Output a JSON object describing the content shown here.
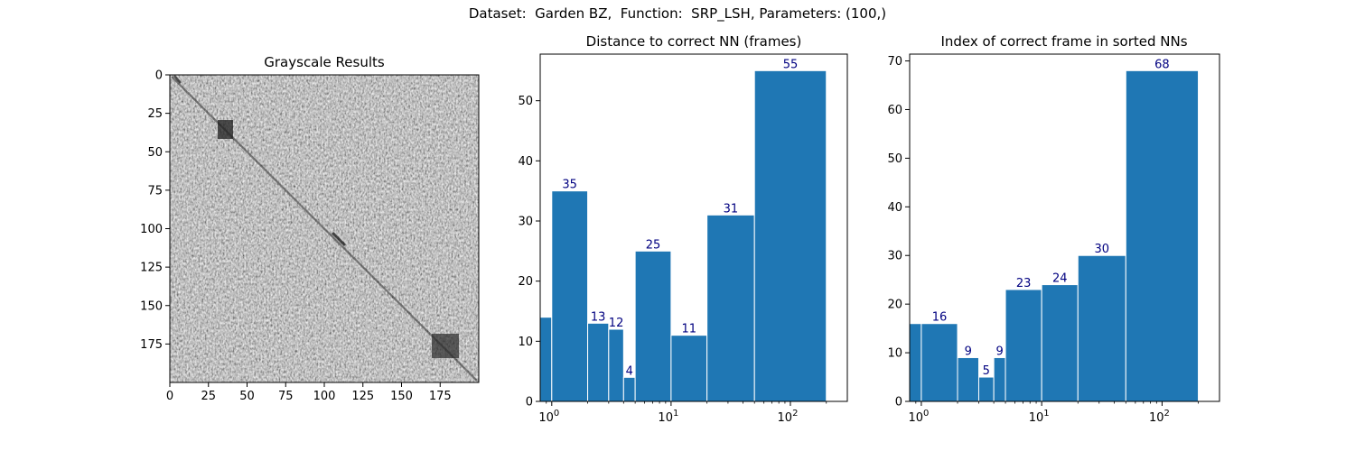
{
  "figure": {
    "suptitle": "Dataset:  Garden BZ,  Function:  SRP_LSH, Parameters: (100,)"
  },
  "colors": {
    "bar": "#1f77b4",
    "bar_edge": "#ffffff",
    "label": "#000080"
  },
  "chart_data": [
    {
      "type": "heatmap",
      "title": "Grayscale Results",
      "colormap": "gray",
      "rows": 200,
      "cols": 200,
      "x_ticks": [
        0,
        25,
        50,
        75,
        100,
        125,
        150,
        175
      ],
      "y_ticks": [
        0,
        25,
        50,
        75,
        100,
        125,
        150,
        175
      ],
      "xlim": [
        0,
        200
      ],
      "ylim": [
        200,
        0
      ]
    },
    {
      "type": "bar",
      "title": "Distance to correct NN (frames)",
      "x_scale": "log",
      "x_tick_labels": [
        "10^0",
        "10^1",
        "10^2"
      ],
      "bins": [
        [
          0.75,
          1
        ],
        [
          1,
          2
        ],
        [
          2,
          3
        ],
        [
          3,
          4
        ],
        [
          4,
          5
        ],
        [
          5,
          10
        ],
        [
          10,
          20
        ],
        [
          20,
          50
        ],
        [
          50,
          200
        ]
      ],
      "values": [
        14,
        35,
        13,
        12,
        4,
        25,
        11,
        31,
        55
      ],
      "labels": [
        "",
        "35",
        "13",
        "12",
        "4",
        "25",
        "11",
        "31",
        "55"
      ],
      "y_ticks": [
        0,
        10,
        20,
        30,
        40,
        50
      ],
      "ylim": [
        0,
        57.75
      ],
      "xlim": [
        0.8,
        300
      ]
    },
    {
      "type": "bar",
      "title": "Index of correct frame in sorted NNs",
      "x_scale": "log",
      "x_tick_labels": [
        "10^0",
        "10^1",
        "10^2"
      ],
      "bins": [
        [
          0.75,
          1
        ],
        [
          1,
          2
        ],
        [
          2,
          3
        ],
        [
          3,
          4
        ],
        [
          4,
          5
        ],
        [
          5,
          10
        ],
        [
          10,
          20
        ],
        [
          20,
          50
        ],
        [
          50,
          200
        ]
      ],
      "values": [
        16,
        16,
        9,
        5,
        9,
        23,
        24,
        30,
        68
      ],
      "labels": [
        "",
        "16",
        "9",
        "5",
        "9",
        "23",
        "24",
        "30",
        "68"
      ],
      "y_ticks": [
        0,
        10,
        20,
        30,
        40,
        50,
        60,
        70
      ],
      "ylim": [
        0,
        71.4
      ],
      "xlim": [
        0.8,
        300
      ]
    }
  ]
}
